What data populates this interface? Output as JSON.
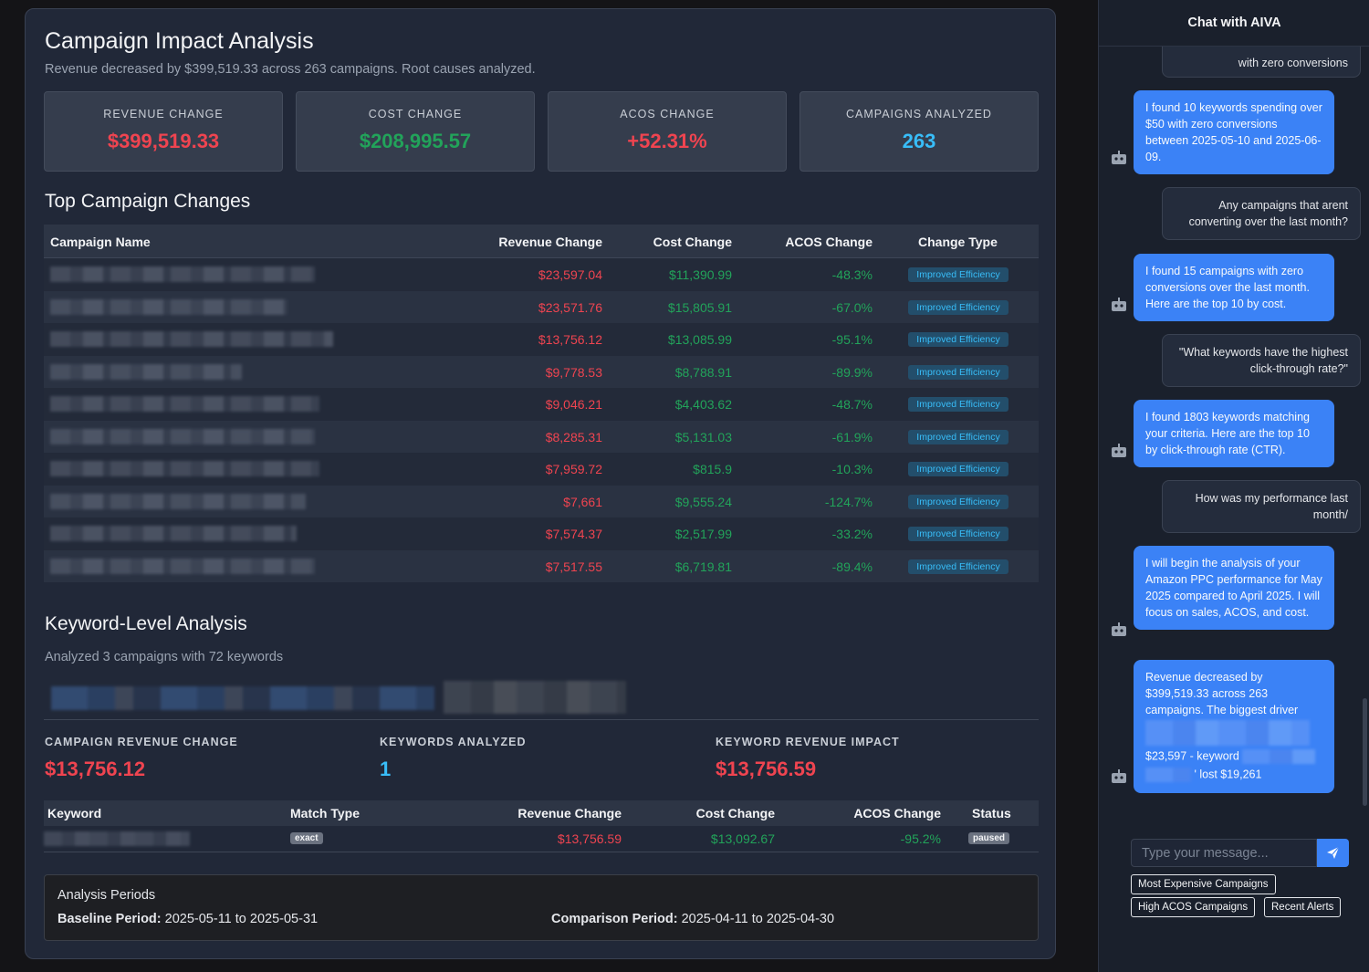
{
  "main": {
    "title": "Campaign Impact Analysis",
    "subtitle": "Revenue decreased by $399,519.33 across 263 campaigns. Root causes analyzed.",
    "metrics": [
      {
        "label": "REVENUE CHANGE",
        "value": "$399,519.33",
        "color": "#ef4450"
      },
      {
        "label": "COST CHANGE",
        "value": "$208,995.57",
        "color": "#22a35a"
      },
      {
        "label": "ACOS CHANGE",
        "value": "+52.31%",
        "color": "#ef4450"
      },
      {
        "label": "CAMPAIGNS ANALYZED",
        "value": "263",
        "color": "#38bdf8"
      }
    ]
  },
  "top_changes": {
    "title": "Top Campaign Changes",
    "headers": {
      "name": "Campaign Name",
      "revenue": "Revenue Change",
      "cost": "Cost Change",
      "acos": "ACOS Change",
      "type": "Change Type"
    },
    "rows": [
      {
        "revenue": "$23,597.04",
        "cost": "$11,390.99",
        "acos": "-48.3%",
        "type": "Improved Efficiency"
      },
      {
        "revenue": "$23,571.76",
        "cost": "$15,805.91",
        "acos": "-67.0%",
        "type": "Improved Efficiency"
      },
      {
        "revenue": "$13,756.12",
        "cost": "$13,085.99",
        "acos": "-95.1%",
        "type": "Improved Efficiency"
      },
      {
        "revenue": "$9,778.53",
        "cost": "$8,788.91",
        "acos": "-89.9%",
        "type": "Improved Efficiency"
      },
      {
        "revenue": "$9,046.21",
        "cost": "$4,403.62",
        "acos": "-48.7%",
        "type": "Improved Efficiency"
      },
      {
        "revenue": "$8,285.31",
        "cost": "$5,131.03",
        "acos": "-61.9%",
        "type": "Improved Efficiency"
      },
      {
        "revenue": "$7,959.72",
        "cost": "$815.9",
        "acos": "-10.3%",
        "type": "Improved Efficiency"
      },
      {
        "revenue": "$7,661",
        "cost": "$9,555.24",
        "acos": "-124.7%",
        "type": "Improved Efficiency"
      },
      {
        "revenue": "$7,574.37",
        "cost": "$2,517.99",
        "acos": "-33.2%",
        "type": "Improved Efficiency"
      },
      {
        "revenue": "$7,517.55",
        "cost": "$6,719.81",
        "acos": "-89.4%",
        "type": "Improved Efficiency"
      }
    ]
  },
  "keyword_analysis": {
    "title": "Keyword-Level Analysis",
    "subtitle": "Analyzed 3 campaigns with 72 keywords",
    "metrics": [
      {
        "label": "CAMPAIGN REVENUE CHANGE",
        "value": "$13,756.12",
        "color": "#ef4450"
      },
      {
        "label": "KEYWORDS ANALYZED",
        "value": "1",
        "color": "#38bdf8"
      },
      {
        "label": "KEYWORD REVENUE IMPACT",
        "value": "$13,756.59",
        "color": "#ef4450"
      }
    ],
    "headers": {
      "keyword": "Keyword",
      "match": "Match Type",
      "revenue": "Revenue Change",
      "cost": "Cost Change",
      "acos": "ACOS Change",
      "status": "Status"
    },
    "rows": [
      {
        "match": "exact",
        "revenue": "$13,756.59",
        "cost": "$13,092.67",
        "acos": "-95.2%",
        "status": "paused"
      }
    ]
  },
  "periods": {
    "title": "Analysis Periods",
    "baseline_label": "Baseline Period:",
    "baseline_value": "2025-05-11 to 2025-05-31",
    "comparison_label": "Comparison Period:",
    "comparison_value": "2025-04-11 to 2025-04-30"
  },
  "chat": {
    "title": "Chat with AIVA",
    "messages": [
      {
        "role": "user",
        "text": "with zero conversions"
      },
      {
        "role": "bot",
        "text": "I found 10 keywords spending over $50 with zero conversions between 2025-05-10 and 2025-06-09."
      },
      {
        "role": "user",
        "text": "Any campaigns that arent converting over the last month?"
      },
      {
        "role": "bot",
        "text": "I found 15 campaigns with zero conversions over the last month. Here are the top 10 by cost."
      },
      {
        "role": "user",
        "text": "\"What keywords have the highest click-through rate?\""
      },
      {
        "role": "bot",
        "text": "I found 1803 keywords matching your criteria. Here are the top 10 by click-through rate (CTR)."
      },
      {
        "role": "user",
        "text": "How was my performance last month/"
      },
      {
        "role": "bot",
        "text": "I will begin the analysis of your Amazon PPC performance for May 2025 compared to April 2025. I will focus on sales, ACOS, and cost."
      },
      {
        "role": "bot",
        "text_a": "Revenue decreased by $399,519.33 across 263 campaigns. The biggest driver",
        "text_b": "$23,597 - keyword",
        "text_c": "' lost $19,261"
      }
    ],
    "input_placeholder": "Type your message...",
    "quick_actions": [
      "Most Expensive Campaigns",
      "High ACOS Campaigns",
      "Recent Alerts"
    ]
  }
}
